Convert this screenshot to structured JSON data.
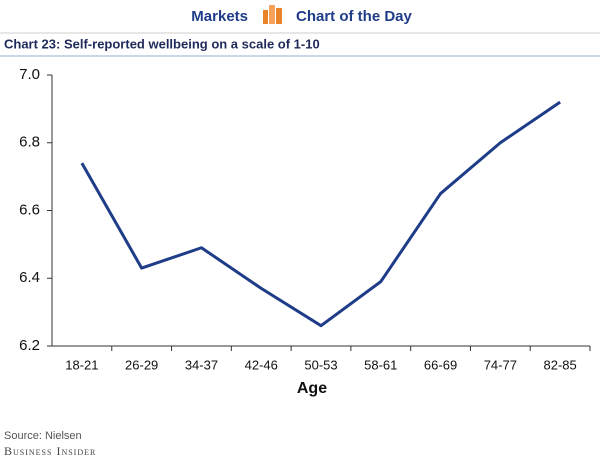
{
  "header": {
    "section": "Markets",
    "feature": "Chart of the Day"
  },
  "chart_data": {
    "type": "line",
    "title": "Chart 23: Self-reported wellbeing on a scale of 1-10",
    "x_label": "Age",
    "categories": [
      "18-21",
      "26-29",
      "34-37",
      "42-46",
      "50-53",
      "58-61",
      "66-69",
      "74-77",
      "82-85"
    ],
    "series": [
      {
        "name": "Wellbeing",
        "color": "#1f3c88",
        "values": [
          6.74,
          6.43,
          6.49,
          6.37,
          6.26,
          6.39,
          6.65,
          6.8,
          6.92
        ]
      }
    ],
    "ylim": [
      6.2,
      7.0
    ],
    "yticks": [
      6.2,
      6.4,
      6.6,
      6.8,
      {
        "value": 7.0,
        "label": "7.0"
      }
    ],
    "grid": false
  },
  "footer": {
    "source": "Source: Nielsen",
    "brand": "Business Insider"
  }
}
